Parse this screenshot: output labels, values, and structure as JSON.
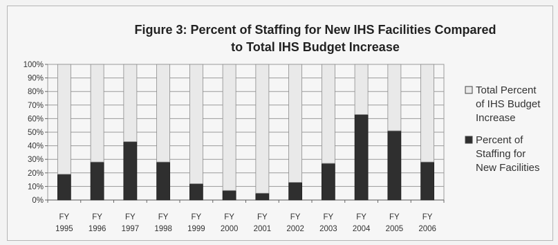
{
  "chart_data": {
    "type": "bar",
    "stacked": true,
    "title_lines": [
      "Figure 3: Percent of Staffing for New IHS Facilities Compared",
      "to Total IHS Budget Increase"
    ],
    "xlabel": "",
    "ylabel": "",
    "categories": [
      [
        "FY",
        "1995"
      ],
      [
        "FY",
        "1996"
      ],
      [
        "FY",
        "1997"
      ],
      [
        "FY",
        "1998"
      ],
      [
        "FY",
        "1999"
      ],
      [
        "FY",
        "2000"
      ],
      [
        "FY",
        "2001"
      ],
      [
        "FY",
        "2002"
      ],
      [
        "FY",
        "2003"
      ],
      [
        "FY",
        "2004"
      ],
      [
        "FY",
        "2005"
      ],
      [
        "FY",
        "2006"
      ]
    ],
    "ylim": [
      0,
      100
    ],
    "yticks": [
      0,
      10,
      20,
      30,
      40,
      50,
      60,
      70,
      80,
      90,
      100
    ],
    "ytick_suffix": "%",
    "grid": true,
    "legend_position": "right",
    "series": [
      {
        "name_lines": [
          "Percent of",
          "Staffing for",
          "New Facilities"
        ],
        "color": "#2f2f2f",
        "values": [
          19,
          28,
          43,
          28,
          12,
          7,
          5,
          13,
          27,
          63,
          51,
          28
        ]
      },
      {
        "name_lines": [
          "Total Percent",
          "of IHS Budget",
          "Increase"
        ],
        "color": "#e9e9e9",
        "values": [
          81,
          72,
          57,
          72,
          88,
          93,
          95,
          87,
          73,
          37,
          49,
          72
        ]
      }
    ]
  }
}
